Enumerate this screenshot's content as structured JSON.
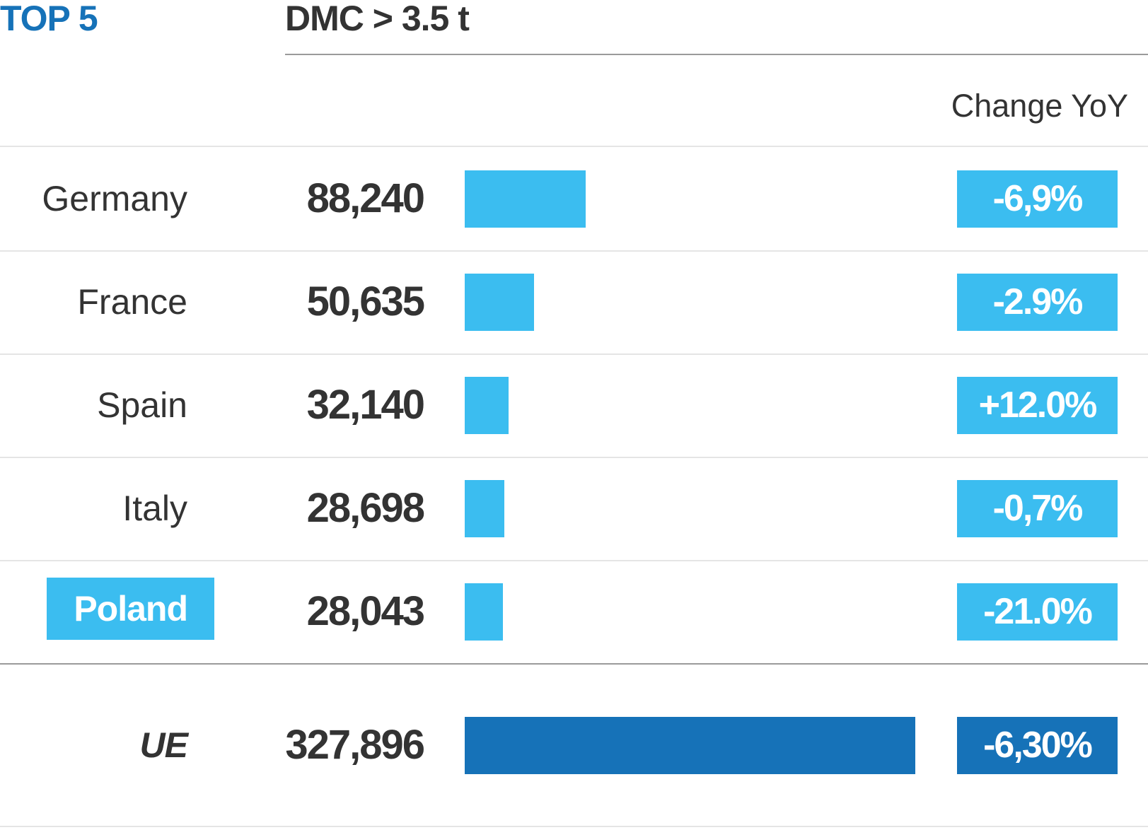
{
  "header": {
    "brand": "TOP 5",
    "title": "DMC > 3.5 t",
    "change_header": "Change YoY"
  },
  "colors": {
    "brand_blue": "#1672b8",
    "bar_light_blue": "#3bbdf0",
    "text_dark": "#333333"
  },
  "chart_data": {
    "type": "bar",
    "orientation": "horizontal",
    "title": "DMC > 3.5 t",
    "categories": [
      "Germany",
      "France",
      "Spain",
      "Italy",
      "Poland",
      "UE"
    ],
    "values": [
      88240,
      50635,
      32140,
      28698,
      28043,
      327896
    ],
    "value_labels": [
      "88,240",
      "50,635",
      "32,140",
      "28,698",
      "28,043",
      "327,896"
    ],
    "change_yoy": [
      "-6,9%",
      "-2.9%",
      "+12.0%",
      "-0,7%",
      "-21.0%",
      "-6,30%"
    ],
    "highlighted_category": "Poland",
    "total_category": "UE",
    "xlim": [
      0,
      327896
    ],
    "grid": false
  }
}
